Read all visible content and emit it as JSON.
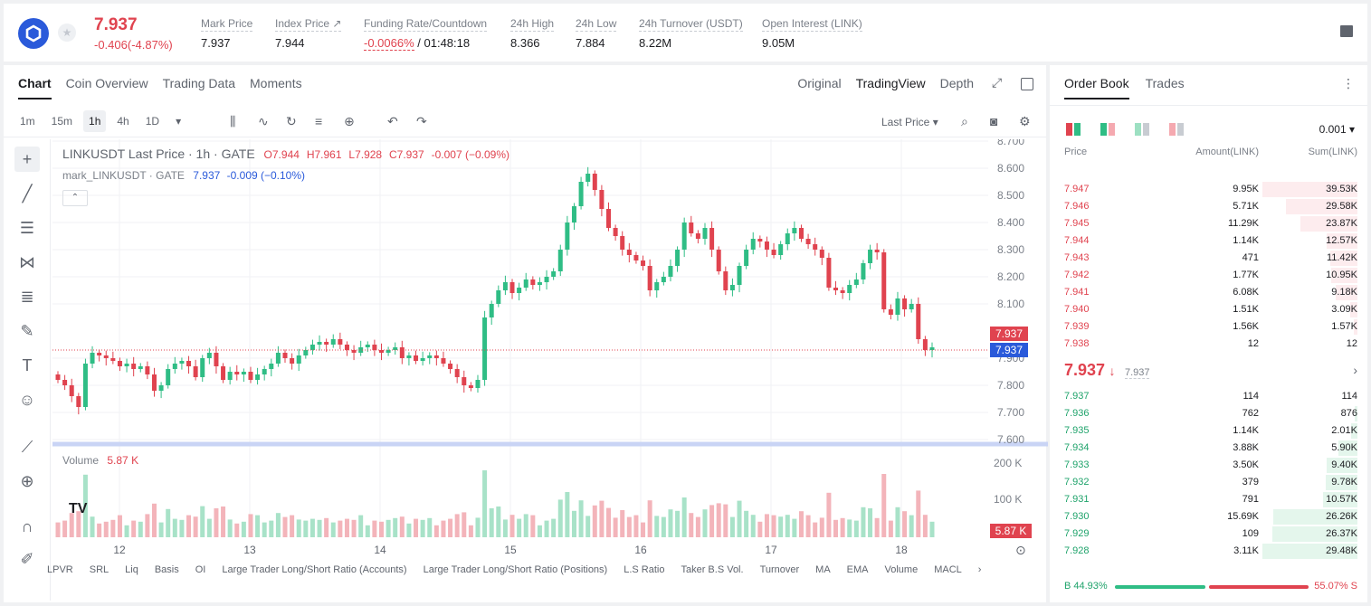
{
  "header": {
    "price": "7.937",
    "change": "-0.406(-4.87%)",
    "stats": [
      {
        "label": "Mark Price",
        "value": "7.937"
      },
      {
        "label": "Index Price ↗",
        "value": "7.944"
      },
      {
        "label": "Funding Rate/Countdown",
        "value_red": "-0.0066%",
        "value": " / 01:48:18"
      },
      {
        "label": "24h High",
        "value": "8.366"
      },
      {
        "label": "24h Low",
        "value": "7.884"
      },
      {
        "label": "24h Turnover (USDT)",
        "value": "8.22M"
      },
      {
        "label": "Open Interest (LINK)",
        "value": "9.05M"
      }
    ]
  },
  "chart_tabs": [
    "Chart",
    "Coin Overview",
    "Trading Data",
    "Moments"
  ],
  "view_tabs": [
    "Original",
    "TradingView",
    "Depth"
  ],
  "intervals": [
    "1m",
    "15m",
    "1h",
    "4h",
    "1D"
  ],
  "price_source": "Last Price",
  "legend": {
    "main": "LINKUSDT Last Price · 1h · GATE",
    "o": "O7.944",
    "h": "H7.961",
    "l": "L7.928",
    "c": "C7.937",
    "chg": "-0.007 (−0.09%)",
    "mark": "mark_LINKUSDT · GATE",
    "mark_val": "7.937",
    "mark_chg": "-0.009 (−0.10%)",
    "volume_label": "Volume",
    "volume_val": "5.87 K"
  },
  "price_tags": {
    "last": "7.937",
    "mark": "7.937",
    "volume": "5.87 K"
  },
  "indicators": [
    "LPVR",
    "SRL",
    "Liq",
    "Basis",
    "OI",
    "Large Trader Long/Short Ratio (Accounts)",
    "Large Trader Long/Short Ratio (Positions)",
    "L.S Ratio",
    "Taker B.S Vol.",
    "Turnover",
    "MA",
    "EMA",
    "Volume",
    "MACL"
  ],
  "colors": {
    "up": "#2fbd85",
    "down": "#e0434f",
    "accent": "#2a5ada"
  },
  "chart_data": {
    "type": "candlestick",
    "yticks": [
      "8.700",
      "8.600",
      "8.500",
      "8.400",
      "8.300",
      "8.200",
      "8.100",
      "7.900",
      "7.800",
      "7.700",
      "7.600"
    ],
    "xticks": [
      "12",
      "13",
      "14",
      "15",
      "16",
      "17",
      "18"
    ],
    "ylim": [
      7.6,
      8.7
    ],
    "vol_ticks": [
      "200 K",
      "100 K"
    ],
    "close": [
      7.82,
      7.8,
      7.76,
      7.72,
      7.88,
      7.92,
      7.91,
      7.9,
      7.89,
      7.87,
      7.88,
      7.86,
      7.87,
      7.84,
      7.78,
      7.8,
      7.86,
      7.88,
      7.89,
      7.87,
      7.83,
      7.9,
      7.92,
      7.87,
      7.82,
      7.85,
      7.84,
      7.85,
      7.82,
      7.84,
      7.86,
      7.88,
      7.92,
      7.9,
      7.88,
      7.91,
      7.93,
      7.95,
      7.96,
      7.95,
      7.97,
      7.95,
      7.93,
      7.92,
      7.94,
      7.95,
      7.93,
      7.92,
      7.93,
      7.94,
      7.9,
      7.91,
      7.89,
      7.9,
      7.91,
      7.9,
      7.88,
      7.86,
      7.83,
      7.8,
      7.79,
      7.82,
      8.05,
      8.1,
      8.15,
      8.18,
      8.14,
      8.16,
      8.19,
      8.17,
      8.18,
      8.2,
      8.22,
      8.3,
      8.4,
      8.46,
      8.55,
      8.58,
      8.52,
      8.45,
      8.38,
      8.35,
      8.3,
      8.28,
      8.26,
      8.24,
      8.15,
      8.18,
      8.2,
      8.24,
      8.3,
      8.4,
      8.36,
      8.34,
      8.38,
      8.3,
      8.22,
      8.15,
      8.17,
      8.24,
      8.3,
      8.34,
      8.33,
      8.3,
      8.28,
      8.32,
      8.36,
      8.38,
      8.34,
      8.32,
      8.3,
      8.27,
      8.16,
      8.15,
      8.14,
      8.17,
      8.19,
      8.25,
      8.3,
      8.29,
      8.08,
      8.06,
      8.12,
      8.08,
      8.1,
      7.97,
      7.93,
      7.94
    ]
  },
  "orderbook": {
    "tabs": [
      "Order Book",
      "Trades"
    ],
    "precision": "0.001",
    "headers": [
      "Price",
      "Amount(LINK)",
      "Sum(LINK)"
    ],
    "asks": [
      {
        "p": "7.947",
        "a": "9.95K",
        "s": "39.53K",
        "f": 1.0
      },
      {
        "p": "7.946",
        "a": "5.71K",
        "s": "29.58K",
        "f": 0.75
      },
      {
        "p": "7.945",
        "a": "11.29K",
        "s": "23.87K",
        "f": 0.6
      },
      {
        "p": "7.944",
        "a": "1.14K",
        "s": "12.57K",
        "f": 0.32
      },
      {
        "p": "7.943",
        "a": "471",
        "s": "11.42K",
        "f": 0.29
      },
      {
        "p": "7.942",
        "a": "1.77K",
        "s": "10.95K",
        "f": 0.28
      },
      {
        "p": "7.941",
        "a": "6.08K",
        "s": "9.18K",
        "f": 0.23
      },
      {
        "p": "7.940",
        "a": "1.51K",
        "s": "3.09K",
        "f": 0.08
      },
      {
        "p": "7.939",
        "a": "1.56K",
        "s": "1.57K",
        "f": 0.04
      },
      {
        "p": "7.938",
        "a": "12",
        "s": "12",
        "f": 0.0
      }
    ],
    "mid_price": "7.937",
    "mid_arrow": "↓",
    "mid_mark": "7.937",
    "bids": [
      {
        "p": "7.937",
        "a": "114",
        "s": "114",
        "f": 0.0
      },
      {
        "p": "7.936",
        "a": "762",
        "s": "876",
        "f": 0.03
      },
      {
        "p": "7.935",
        "a": "1.14K",
        "s": "2.01K",
        "f": 0.07
      },
      {
        "p": "7.934",
        "a": "3.88K",
        "s": "5.90K",
        "f": 0.2
      },
      {
        "p": "7.933",
        "a": "3.50K",
        "s": "9.40K",
        "f": 0.32
      },
      {
        "p": "7.932",
        "a": "379",
        "s": "9.78K",
        "f": 0.33
      },
      {
        "p": "7.931",
        "a": "791",
        "s": "10.57K",
        "f": 0.36
      },
      {
        "p": "7.930",
        "a": "15.69K",
        "s": "26.26K",
        "f": 0.89
      },
      {
        "p": "7.929",
        "a": "109",
        "s": "26.37K",
        "f": 0.9
      },
      {
        "p": "7.928",
        "a": "3.11K",
        "s": "29.48K",
        "f": 1.0
      }
    ],
    "buy_ratio": "B 44.93%",
    "sell_ratio": "55.07% S"
  }
}
